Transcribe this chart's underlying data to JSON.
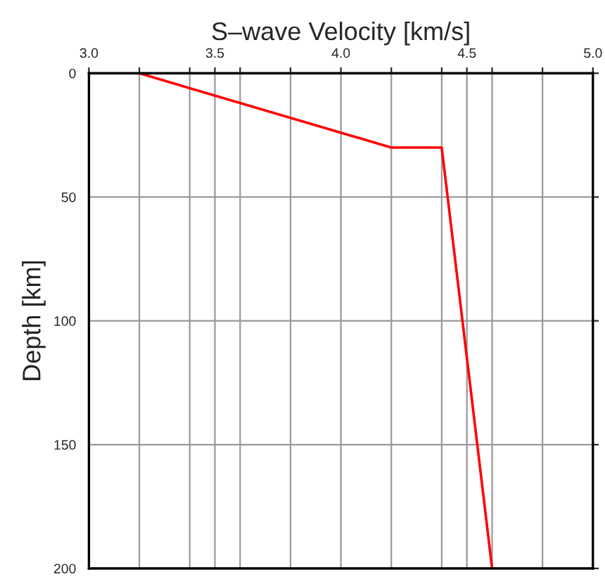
{
  "chart_data": {
    "type": "line",
    "xlabel": "S–wave Velocity [km/s]",
    "ylabel": "Depth [km]",
    "x": [
      3.2,
      4.2,
      4.4,
      4.6
    ],
    "series": [
      {
        "color": "#ff0000",
        "values": [
          0,
          30,
          30,
          200
        ]
      }
    ],
    "xlim": [
      3.0,
      5.0
    ],
    "xticks": [
      {
        "value": 3.0,
        "label": "3.0"
      },
      {
        "value": 3.2,
        "label": null
      },
      {
        "value": 3.4,
        "label": null
      },
      {
        "value": 3.5,
        "label": "3.5"
      },
      {
        "value": 3.6,
        "label": null
      },
      {
        "value": 3.8,
        "label": null
      },
      {
        "value": 4.0,
        "label": "4.0"
      },
      {
        "value": 4.2,
        "label": null
      },
      {
        "value": 4.4,
        "label": null
      },
      {
        "value": 4.5,
        "label": "4.5"
      },
      {
        "value": 4.6,
        "label": null
      },
      {
        "value": 4.8,
        "label": null
      },
      {
        "value": 5.0,
        "label": "5.0"
      }
    ],
    "ylim": [
      200,
      0
    ],
    "yticks": [
      0,
      50,
      100,
      150,
      200
    ],
    "grid": true,
    "marker": "none",
    "line_style": "solid"
  }
}
